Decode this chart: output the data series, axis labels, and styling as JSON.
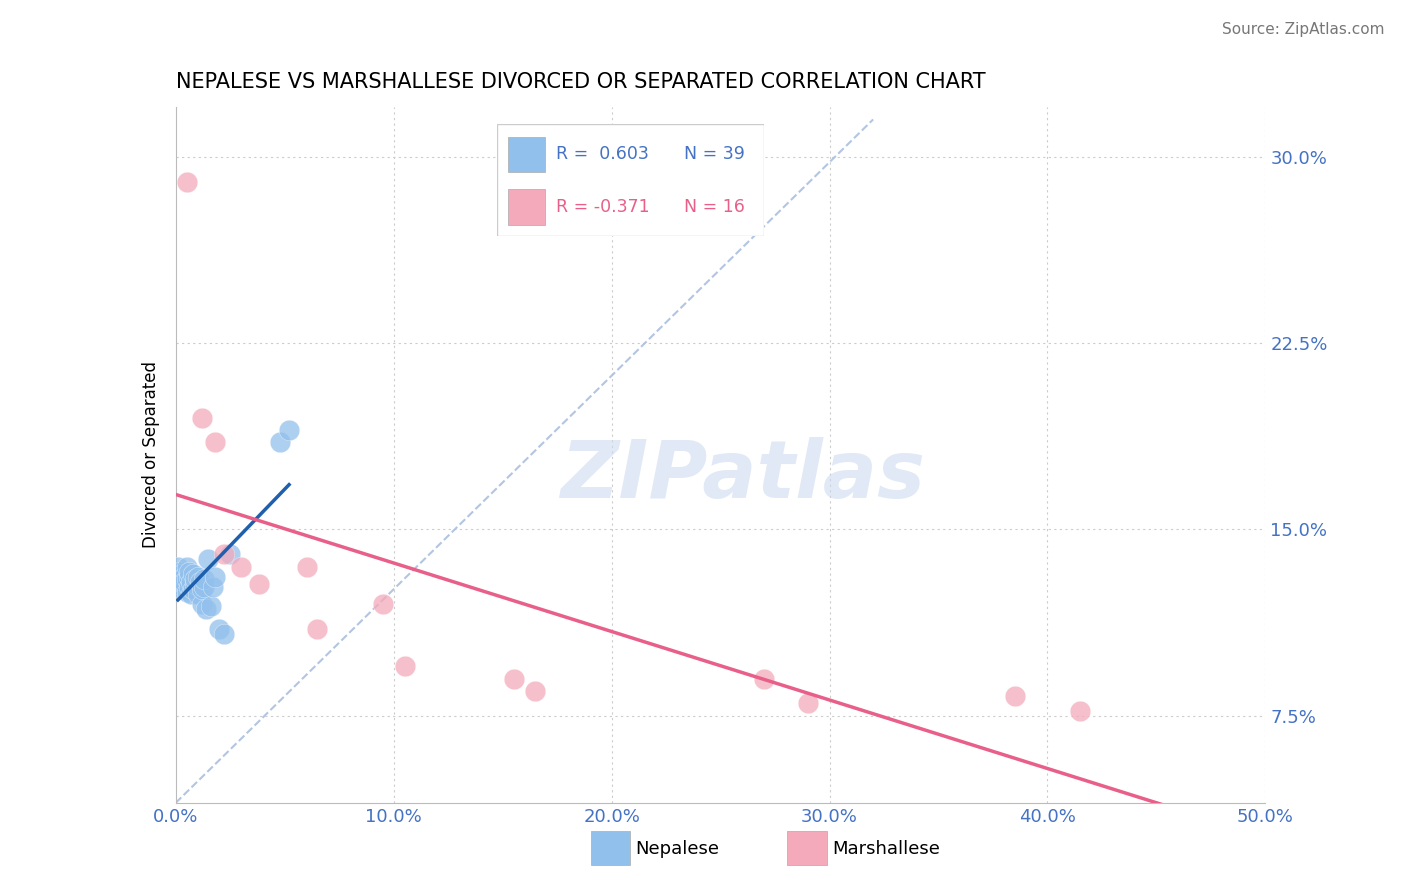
{
  "title": "NEPALESE VS MARSHALLESE DIVORCED OR SEPARATED CORRELATION CHART",
  "source": "Source: ZipAtlas.com",
  "xlim": [
    0.0,
    0.5
  ],
  "ylim": [
    0.04,
    0.32
  ],
  "ytick_positions": [
    0.075,
    0.15,
    0.225,
    0.3
  ],
  "xtick_positions": [
    0.0,
    0.1,
    0.2,
    0.3,
    0.4,
    0.5
  ],
  "nepalese_x": [
    0.001,
    0.001,
    0.002,
    0.002,
    0.003,
    0.003,
    0.003,
    0.004,
    0.004,
    0.004,
    0.005,
    0.005,
    0.005,
    0.006,
    0.006,
    0.006,
    0.007,
    0.007,
    0.008,
    0.008,
    0.009,
    0.009,
    0.01,
    0.01,
    0.011,
    0.012,
    0.012,
    0.013,
    0.013,
    0.014,
    0.015,
    0.016,
    0.017,
    0.018,
    0.02,
    0.022,
    0.025,
    0.048,
    0.052
  ],
  "nepalese_y": [
    0.135,
    0.13,
    0.128,
    0.133,
    0.126,
    0.13,
    0.132,
    0.128,
    0.131,
    0.129,
    0.125,
    0.13,
    0.135,
    0.127,
    0.131,
    0.133,
    0.124,
    0.129,
    0.126,
    0.132,
    0.128,
    0.13,
    0.124,
    0.131,
    0.129,
    0.12,
    0.126,
    0.127,
    0.13,
    0.118,
    0.138,
    0.119,
    0.127,
    0.131,
    0.11,
    0.108,
    0.14,
    0.185,
    0.19
  ],
  "marshallese_x": [
    0.005,
    0.012,
    0.018,
    0.022,
    0.03,
    0.038,
    0.06,
    0.065,
    0.095,
    0.105,
    0.155,
    0.165,
    0.27,
    0.29,
    0.385,
    0.415
  ],
  "marshallese_y": [
    0.29,
    0.195,
    0.185,
    0.14,
    0.135,
    0.128,
    0.135,
    0.11,
    0.12,
    0.095,
    0.09,
    0.085,
    0.09,
    0.08,
    0.083,
    0.077
  ],
  "blue_color": "#92C0EC",
  "pink_color": "#F4AABB",
  "blue_line_color": "#1F5FAD",
  "pink_line_color": "#E8608A",
  "diag_line_color": "#AABFDF",
  "legend_r_blue": "R =  0.603",
  "legend_n_blue": "N = 39",
  "legend_r_pink": "R = -0.371",
  "legend_n_pink": "N = 16",
  "watermark": "ZIPatlas",
  "grid_color": "#CCCCCC",
  "axis_color": "#4472C4",
  "ylabel": "Divorced or Separated"
}
